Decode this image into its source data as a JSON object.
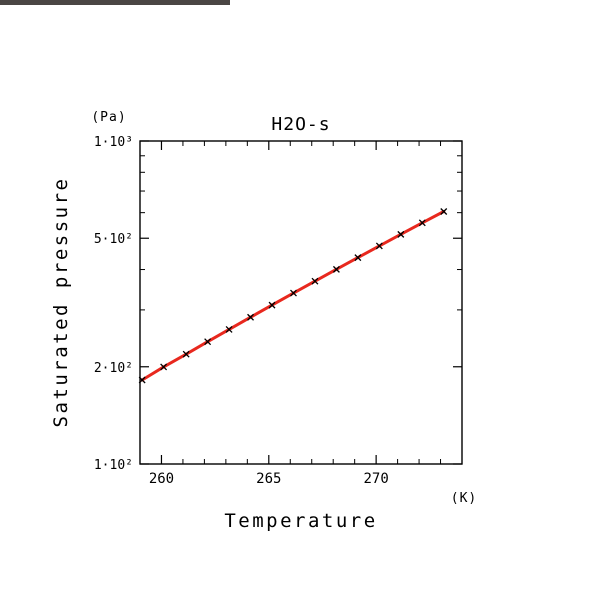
{
  "chart_data": {
    "type": "line",
    "title": "H2O-s",
    "xlabel": "Temperature",
    "ylabel": "Saturated pressure",
    "x_unit": "(K)",
    "y_unit": "(Pa)",
    "xlim": [
      259,
      274
    ],
    "ylim": [
      100,
      1000
    ],
    "y_scale": "log",
    "x_ticks": [
      {
        "value": 260,
        "label": "260"
      },
      {
        "value": 265,
        "label": "265"
      },
      {
        "value": 270,
        "label": "270"
      }
    ],
    "y_ticks": [
      {
        "value": 100,
        "label": "1·10²"
      },
      {
        "value": 200,
        "label": "2·10²"
      },
      {
        "value": 500,
        "label": "5·10²"
      },
      {
        "value": 1000,
        "label": "1·10³"
      }
    ],
    "line_color": "#e8281e",
    "marker_color": "#000000",
    "marker": "x",
    "x": [
      259.1,
      260.1,
      261.15,
      262.15,
      263.15,
      264.15,
      265.15,
      266.15,
      267.15,
      268.15,
      269.15,
      270.15,
      271.15,
      272.15,
      273.15
    ],
    "values": [
      182.0,
      199.8,
      218.8,
      239.2,
      261.0,
      284.7,
      310.4,
      338.2,
      368.1,
      400.5,
      435.5,
      473.3,
      514.0,
      558.0,
      605.0
    ]
  }
}
